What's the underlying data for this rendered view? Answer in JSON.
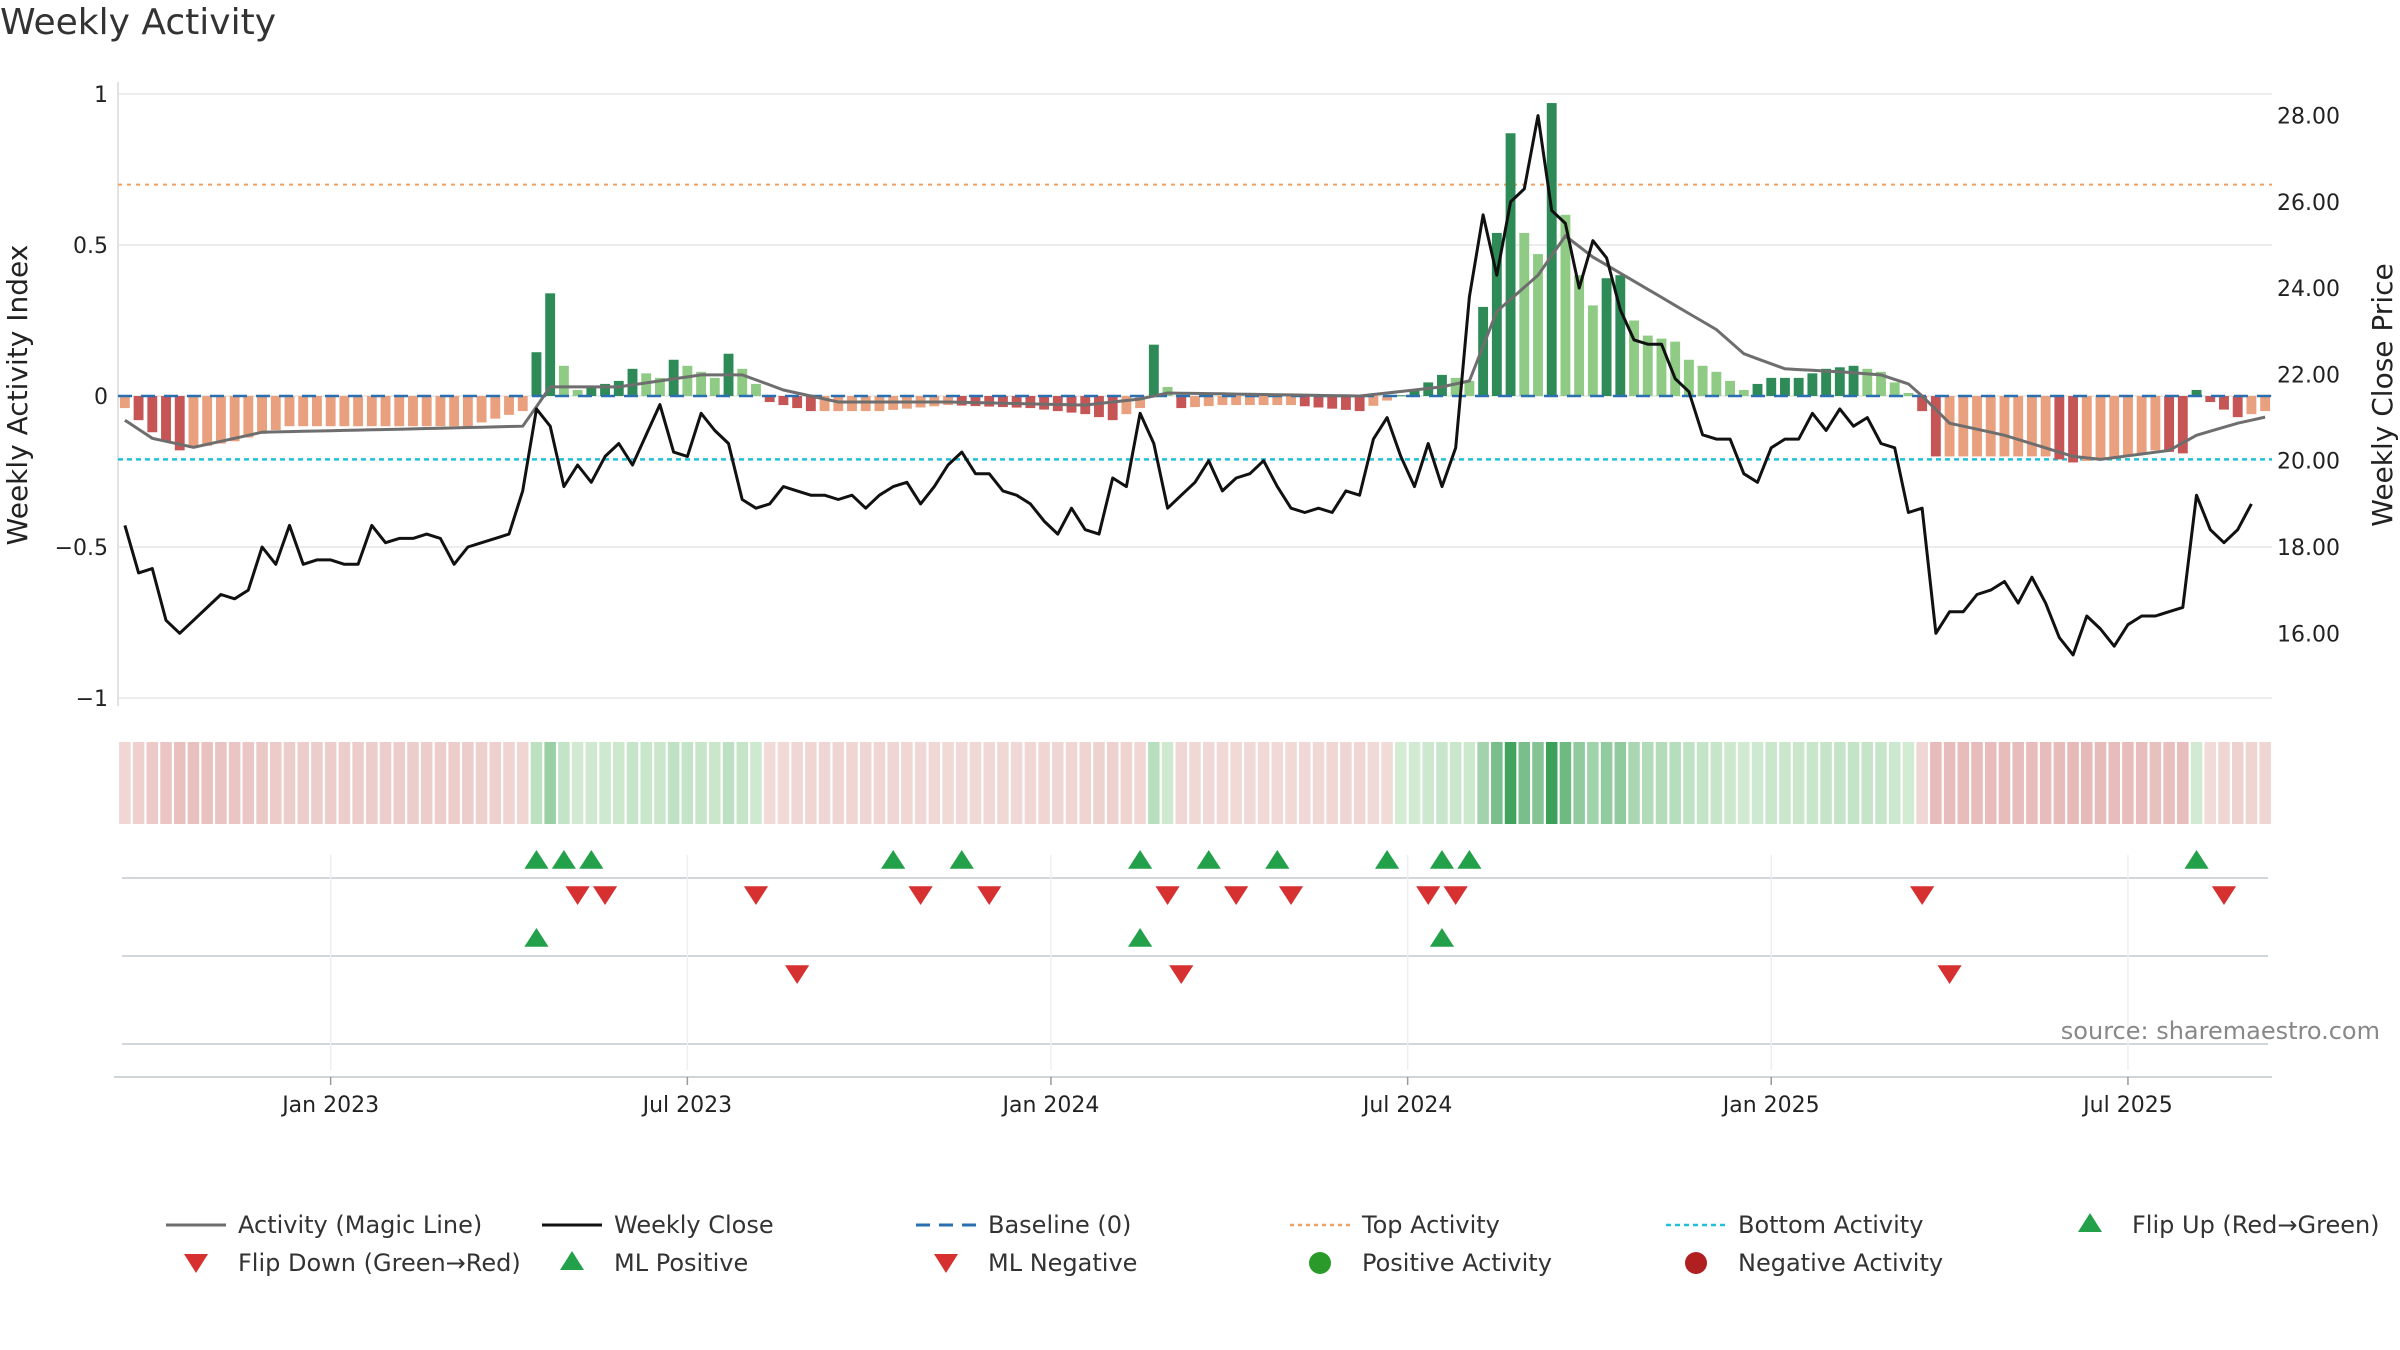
{
  "title": "Weekly Activity",
  "source": "source: sharemaestro.com",
  "colors": {
    "pos_dark": "#2e8b57",
    "pos_light": "#8fcb85",
    "neg_dark": "#c65656",
    "neg_light": "#e9a07e",
    "magic": "#6e6e6e",
    "close": "#111111",
    "baseline": "#2a6fb0",
    "top": "#f0a060",
    "bottom": "#22c0d8",
    "up": "#23a04a",
    "down": "#d63030",
    "pos_dot": "#2a9a2a",
    "neg_dot": "#b02020"
  },
  "chart_data": {
    "type": "bar+line",
    "title": "Weekly Activity",
    "ylabel_left": "Weekly Activity Index",
    "ylabel_right": "Weekly Close Price",
    "ylim_left": [
      -1,
      1
    ],
    "ylim_right": [
      14.5,
      28.5
    ],
    "left_ticks": [
      "1",
      "0.5",
      "0",
      "−0.5",
      "−1"
    ],
    "left_tick_values": [
      1,
      0.5,
      0,
      -0.5,
      -1
    ],
    "right_ticks": [
      "28.00",
      "26.00",
      "24.00",
      "22.00",
      "20.00",
      "18.00",
      "16.00"
    ],
    "right_tick_values": [
      28,
      26,
      24,
      22,
      20,
      18,
      16
    ],
    "x_ticks": [
      "Jan 2023",
      "Jul 2023",
      "Jan 2024",
      "Jul 2024",
      "Jan 2025",
      "Jul 2025"
    ],
    "x_tick_weeks": [
      15,
      41,
      67.5,
      93.5,
      120,
      146
    ],
    "n_weeks": 157,
    "top_activity": 0.7,
    "bottom_activity": -0.21,
    "baseline": 0,
    "activity_keypoints": [
      [
        0,
        -0.04
      ],
      [
        2,
        -0.12
      ],
      [
        4,
        -0.18
      ],
      [
        8,
        -0.15
      ],
      [
        12,
        -0.1
      ],
      [
        18,
        -0.1
      ],
      [
        25,
        -0.1
      ],
      [
        29,
        -0.05
      ],
      [
        31,
        0.34
      ],
      [
        32,
        0.1
      ],
      [
        33,
        0.02
      ],
      [
        34,
        0.03
      ],
      [
        36,
        0.05
      ],
      [
        37,
        0.09
      ],
      [
        39,
        0.06
      ],
      [
        40,
        0.12
      ],
      [
        43,
        0.06
      ],
      [
        44,
        0.14
      ],
      [
        46,
        0.04
      ],
      [
        47,
        -0.02
      ],
      [
        50,
        -0.05
      ],
      [
        55,
        -0.05
      ],
      [
        60,
        -0.03
      ],
      [
        66,
        -0.04
      ],
      [
        70,
        -0.06
      ],
      [
        72,
        -0.08
      ],
      [
        74,
        -0.04
      ],
      [
        75,
        0.17
      ],
      [
        76,
        0.03
      ],
      [
        77,
        -0.04
      ],
      [
        80,
        -0.03
      ],
      [
        85,
        -0.03
      ],
      [
        90,
        -0.05
      ],
      [
        94,
        0.02
      ],
      [
        96,
        0.07
      ],
      [
        98,
        0.05
      ],
      [
        100,
        0.54
      ],
      [
        101,
        0.87
      ],
      [
        102,
        0.54
      ],
      [
        103,
        0.47
      ],
      [
        104,
        0.97
      ],
      [
        105,
        0.6
      ],
      [
        106,
        0.4
      ],
      [
        107,
        0.3
      ],
      [
        108,
        0.39
      ],
      [
        109,
        0.4
      ],
      [
        110,
        0.25
      ],
      [
        111,
        0.2
      ],
      [
        113,
        0.18
      ],
      [
        114,
        0.12
      ],
      [
        116,
        0.08
      ],
      [
        118,
        0.02
      ],
      [
        120,
        0.06
      ],
      [
        122,
        0.06
      ],
      [
        124,
        0.09
      ],
      [
        126,
        0.1
      ],
      [
        128,
        0.08
      ],
      [
        130,
        0.01
      ],
      [
        131,
        -0.05
      ],
      [
        132,
        -0.2
      ],
      [
        134,
        -0.2
      ],
      [
        138,
        -0.2
      ],
      [
        140,
        -0.2
      ],
      [
        142,
        -0.22
      ],
      [
        144,
        -0.21
      ],
      [
        146,
        -0.2
      ],
      [
        148,
        -0.18
      ],
      [
        150,
        -0.19
      ],
      [
        151,
        0.02
      ],
      [
        152,
        -0.02
      ],
      [
        154,
        -0.07
      ],
      [
        156,
        -0.05
      ]
    ],
    "magic_line_keypoints": [
      [
        0,
        -0.08
      ],
      [
        2,
        -0.14
      ],
      [
        5,
        -0.17
      ],
      [
        10,
        -0.12
      ],
      [
        20,
        -0.11
      ],
      [
        29,
        -0.1
      ],
      [
        31,
        0.03
      ],
      [
        36,
        0.03
      ],
      [
        42,
        0.07
      ],
      [
        45,
        0.07
      ],
      [
        48,
        0.02
      ],
      [
        52,
        -0.02
      ],
      [
        60,
        -0.02
      ],
      [
        70,
        -0.03
      ],
      [
        74,
        -0.01
      ],
      [
        76,
        0.01
      ],
      [
        90,
        0.0
      ],
      [
        96,
        0.03
      ],
      [
        98,
        0.05
      ],
      [
        100,
        0.28
      ],
      [
        103,
        0.4
      ],
      [
        105,
        0.53
      ],
      [
        107,
        0.46
      ],
      [
        110,
        0.38
      ],
      [
        113,
        0.3
      ],
      [
        116,
        0.22
      ],
      [
        118,
        0.14
      ],
      [
        121,
        0.09
      ],
      [
        125,
        0.08
      ],
      [
        128,
        0.07
      ],
      [
        130,
        0.04
      ],
      [
        131,
        0.0
      ],
      [
        133,
        -0.09
      ],
      [
        137,
        -0.13
      ],
      [
        142,
        -0.2
      ],
      [
        144,
        -0.21
      ],
      [
        149,
        -0.18
      ],
      [
        151,
        -0.13
      ],
      [
        154,
        -0.09
      ],
      [
        156,
        -0.07
      ]
    ],
    "close_keypoints": [
      [
        0,
        18.5
      ],
      [
        1,
        17.4
      ],
      [
        2,
        17.5
      ],
      [
        3,
        16.3
      ],
      [
        4,
        16.0
      ],
      [
        5,
        16.3
      ],
      [
        6,
        16.6
      ],
      [
        7,
        16.9
      ],
      [
        8,
        16.8
      ],
      [
        9,
        17.0
      ],
      [
        10,
        18.0
      ],
      [
        11,
        17.6
      ],
      [
        12,
        18.5
      ],
      [
        13,
        17.6
      ],
      [
        14,
        17.7
      ],
      [
        15,
        17.7
      ],
      [
        16,
        17.6
      ],
      [
        17,
        17.6
      ],
      [
        18,
        18.5
      ],
      [
        19,
        18.1
      ],
      [
        20,
        18.2
      ],
      [
        21,
        18.2
      ],
      [
        22,
        18.3
      ],
      [
        23,
        18.2
      ],
      [
        24,
        17.6
      ],
      [
        25,
        18.0
      ],
      [
        26,
        18.1
      ],
      [
        27,
        18.2
      ],
      [
        28,
        18.3
      ],
      [
        29,
        19.3
      ],
      [
        30,
        21.2
      ],
      [
        31,
        20.8
      ],
      [
        32,
        19.4
      ],
      [
        33,
        19.9
      ],
      [
        34,
        19.5
      ],
      [
        35,
        20.1
      ],
      [
        36,
        20.4
      ],
      [
        37,
        19.9
      ],
      [
        38,
        20.6
      ],
      [
        39,
        21.3
      ],
      [
        40,
        20.2
      ],
      [
        41,
        20.1
      ],
      [
        42,
        21.1
      ],
      [
        43,
        20.7
      ],
      [
        44,
        20.4
      ],
      [
        45,
        19.1
      ],
      [
        46,
        18.9
      ],
      [
        47,
        19.0
      ],
      [
        48,
        19.4
      ],
      [
        49,
        19.3
      ],
      [
        50,
        19.2
      ],
      [
        51,
        19.2
      ],
      [
        52,
        19.1
      ],
      [
        53,
        19.2
      ],
      [
        54,
        18.9
      ],
      [
        55,
        19.2
      ],
      [
        56,
        19.4
      ],
      [
        57,
        19.5
      ],
      [
        58,
        19.0
      ],
      [
        59,
        19.4
      ],
      [
        60,
        19.9
      ],
      [
        61,
        20.2
      ],
      [
        62,
        19.7
      ],
      [
        63,
        19.7
      ],
      [
        64,
        19.3
      ],
      [
        65,
        19.2
      ],
      [
        66,
        19.0
      ],
      [
        67,
        18.6
      ],
      [
        68,
        18.3
      ],
      [
        69,
        18.9
      ],
      [
        70,
        18.4
      ],
      [
        71,
        18.3
      ],
      [
        72,
        19.6
      ],
      [
        73,
        19.4
      ],
      [
        74,
        21.1
      ],
      [
        75,
        20.4
      ],
      [
        76,
        18.9
      ],
      [
        77,
        19.2
      ],
      [
        78,
        19.5
      ],
      [
        79,
        20.0
      ],
      [
        80,
        19.3
      ],
      [
        81,
        19.6
      ],
      [
        82,
        19.7
      ],
      [
        83,
        20.0
      ],
      [
        84,
        19.4
      ],
      [
        85,
        18.9
      ],
      [
        86,
        18.8
      ],
      [
        87,
        18.9
      ],
      [
        88,
        18.8
      ],
      [
        89,
        19.3
      ],
      [
        90,
        19.2
      ],
      [
        91,
        20.5
      ],
      [
        92,
        21.0
      ],
      [
        93,
        20.1
      ],
      [
        94,
        19.4
      ],
      [
        95,
        20.4
      ],
      [
        96,
        19.4
      ],
      [
        97,
        20.3
      ],
      [
        98,
        23.8
      ],
      [
        99,
        25.7
      ],
      [
        100,
        24.3
      ],
      [
        101,
        26.0
      ],
      [
        102,
        26.3
      ],
      [
        103,
        28.0
      ],
      [
        104,
        25.8
      ],
      [
        105,
        25.5
      ],
      [
        106,
        24.0
      ],
      [
        107,
        25.1
      ],
      [
        108,
        24.7
      ],
      [
        109,
        23.5
      ],
      [
        110,
        22.8
      ],
      [
        111,
        22.7
      ],
      [
        112,
        22.7
      ],
      [
        113,
        21.9
      ],
      [
        114,
        21.6
      ],
      [
        115,
        20.6
      ],
      [
        116,
        20.5
      ],
      [
        117,
        20.5
      ],
      [
        118,
        19.7
      ],
      [
        119,
        19.5
      ],
      [
        120,
        20.3
      ],
      [
        121,
        20.5
      ],
      [
        122,
        20.5
      ],
      [
        123,
        21.1
      ],
      [
        124,
        20.7
      ],
      [
        125,
        21.2
      ],
      [
        126,
        20.8
      ],
      [
        127,
        21.0
      ],
      [
        128,
        20.4
      ],
      [
        129,
        20.3
      ],
      [
        130,
        18.8
      ],
      [
        131,
        18.9
      ],
      [
        132,
        16.0
      ],
      [
        133,
        16.5
      ],
      [
        134,
        16.5
      ],
      [
        135,
        16.9
      ],
      [
        136,
        17.0
      ],
      [
        137,
        17.2
      ],
      [
        138,
        16.7
      ],
      [
        139,
        17.3
      ],
      [
        140,
        16.7
      ],
      [
        141,
        15.9
      ],
      [
        142,
        15.5
      ],
      [
        143,
        16.4
      ],
      [
        144,
        16.1
      ],
      [
        145,
        15.7
      ],
      [
        146,
        16.2
      ],
      [
        147,
        16.4
      ],
      [
        148,
        16.4
      ],
      [
        149,
        16.5
      ],
      [
        150,
        16.6
      ],
      [
        151,
        19.2
      ],
      [
        152,
        18.4
      ],
      [
        153,
        18.1
      ],
      [
        154,
        18.4
      ],
      [
        155,
        19.0
      ]
    ],
    "flip_up_weeks": [
      30,
      32,
      34,
      56,
      61,
      74,
      79,
      84,
      92,
      96,
      98,
      151
    ],
    "flip_down_weeks": [
      33,
      35,
      46,
      58,
      63,
      76,
      81,
      85,
      95,
      97,
      131,
      153
    ],
    "ml_positive_weeks": [
      30,
      74,
      96
    ],
    "ml_negative_weeks": [
      49,
      77,
      133
    ],
    "legend": [
      {
        "label": "Activity (Magic Line)",
        "marker": "line-gray"
      },
      {
        "label": "Weekly Close",
        "marker": "line-black"
      },
      {
        "label": "Baseline (0)",
        "marker": "dash-blue"
      },
      {
        "label": "Top Activity",
        "marker": "dot-orange"
      },
      {
        "label": "Bottom Activity",
        "marker": "dot-cyan"
      },
      {
        "label": "Flip Up (Red→Green)",
        "marker": "tri-up"
      },
      {
        "label": "Flip Down (Green→Red)",
        "marker": "tri-down"
      },
      {
        "label": "ML Positive",
        "marker": "tri-up"
      },
      {
        "label": "ML Negative",
        "marker": "tri-down"
      },
      {
        "label": "Positive Activity",
        "marker": "circle-green"
      },
      {
        "label": "Negative Activity",
        "marker": "circle-red"
      }
    ]
  }
}
